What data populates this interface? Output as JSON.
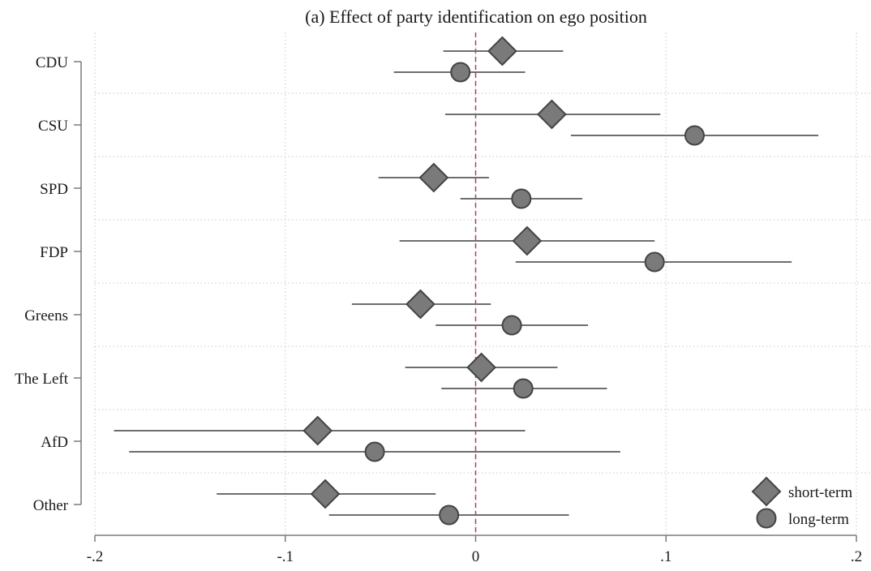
{
  "chart_data": {
    "type": "scatter",
    "subtype": "coefficient-plot",
    "orientation": "horizontal",
    "title": "(a) Effect of party identification on ego position",
    "xlabel": "",
    "ylabel": "",
    "categories": [
      "CDU",
      "CSU",
      "SPD",
      "FDP",
      "Greens",
      "The Left",
      "AfD",
      "Other"
    ],
    "xlim": [
      -0.2,
      0.2
    ],
    "xticks": [
      {
        "value": -0.2,
        "label": "-.2"
      },
      {
        "value": -0.1,
        "label": "-.1"
      },
      {
        "value": 0,
        "label": "0"
      },
      {
        "value": 0.1,
        "label": ".1"
      },
      {
        "value": 0.2,
        "label": ".2"
      }
    ],
    "reference_line": {
      "x": 0,
      "style": "dashed",
      "color": "#b03a6b"
    },
    "grid": true,
    "legend_position": "bottom-right",
    "series": [
      {
        "name": "short-term",
        "marker": "diamond",
        "color": "#7a7a7a",
        "estimates": [
          0.014,
          0.04,
          -0.022,
          0.027,
          -0.029,
          0.003,
          -0.083,
          -0.079
        ],
        "ci_lower": [
          -0.017,
          -0.016,
          -0.051,
          -0.04,
          -0.065,
          -0.037,
          -0.19,
          -0.136
        ],
        "ci_upper": [
          0.046,
          0.097,
          0.007,
          0.094,
          0.008,
          0.043,
          0.026,
          -0.021
        ]
      },
      {
        "name": "long-term",
        "marker": "circle",
        "color": "#7a7a7a",
        "estimates": [
          -0.008,
          0.115,
          0.024,
          0.094,
          0.019,
          0.025,
          -0.053,
          -0.014
        ],
        "ci_lower": [
          -0.043,
          0.05,
          -0.008,
          0.021,
          -0.021,
          -0.018,
          -0.182,
          -0.077
        ],
        "ci_upper": [
          0.026,
          0.18,
          0.056,
          0.166,
          0.059,
          0.069,
          0.076,
          0.049
        ]
      }
    ]
  }
}
